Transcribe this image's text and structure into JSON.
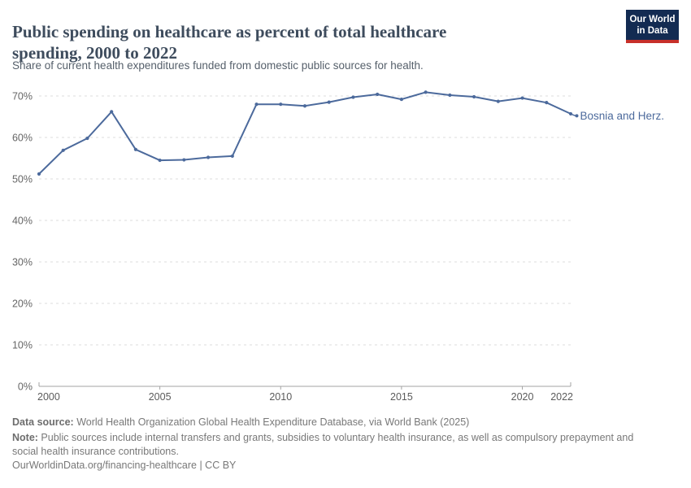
{
  "header": {
    "title": "Public spending on healthcare as percent of total healthcare spending, 2000 to 2022",
    "subtitle": "Share of current health expenditures funded from domestic public sources for health.",
    "logo": {
      "line1": "Our World",
      "line2": "in Data",
      "bg_color": "#132B52",
      "accent_color": "#C7302A"
    }
  },
  "chart_data": {
    "type": "line",
    "title": "Public spending on healthcare as percent of total healthcare spending, 2000 to 2022",
    "xlabel": "",
    "ylabel": "",
    "x": [
      2000,
      2001,
      2002,
      2003,
      2004,
      2005,
      2006,
      2007,
      2008,
      2009,
      2010,
      2011,
      2012,
      2013,
      2014,
      2015,
      2016,
      2017,
      2018,
      2019,
      2020,
      2021,
      2022
    ],
    "series": [
      {
        "name": "Bosnia and Herz.",
        "color": "#4C6A9C",
        "values": [
          51.2,
          56.9,
          59.8,
          66.2,
          57.1,
          54.5,
          54.6,
          55.2,
          55.5,
          68.0,
          68.0,
          67.6,
          68.5,
          69.7,
          70.4,
          69.2,
          70.9,
          70.2,
          69.8,
          68.7,
          69.5,
          68.4,
          65.7
        ]
      }
    ],
    "ylim": [
      0,
      70
    ],
    "y_ticks": [
      0,
      10,
      20,
      30,
      40,
      50,
      60,
      70
    ],
    "y_tick_suffix": "%",
    "x_ticks": [
      2000,
      2005,
      2010,
      2015,
      2020,
      2022
    ],
    "grid": "dashed horizontal",
    "legend_position": "end-of-line label",
    "colors": {
      "gridline": "#dcdcdc",
      "axis": "#a3a3a3",
      "y_tick_label": "#666666",
      "x_tick_label": "#5b5b5b"
    }
  },
  "footer": {
    "source_label": "Data source:",
    "source_text": " World Health Organization Global Health Expenditure Database, via World Bank (2025)",
    "note_label": "Note:",
    "note_text": " Public sources include internal transfers and grants, subsidies to voluntary health insurance, as well as compulsory prepayment and social health insurance contributions.",
    "license": "OurWorldinData.org/financing-healthcare | CC BY"
  }
}
